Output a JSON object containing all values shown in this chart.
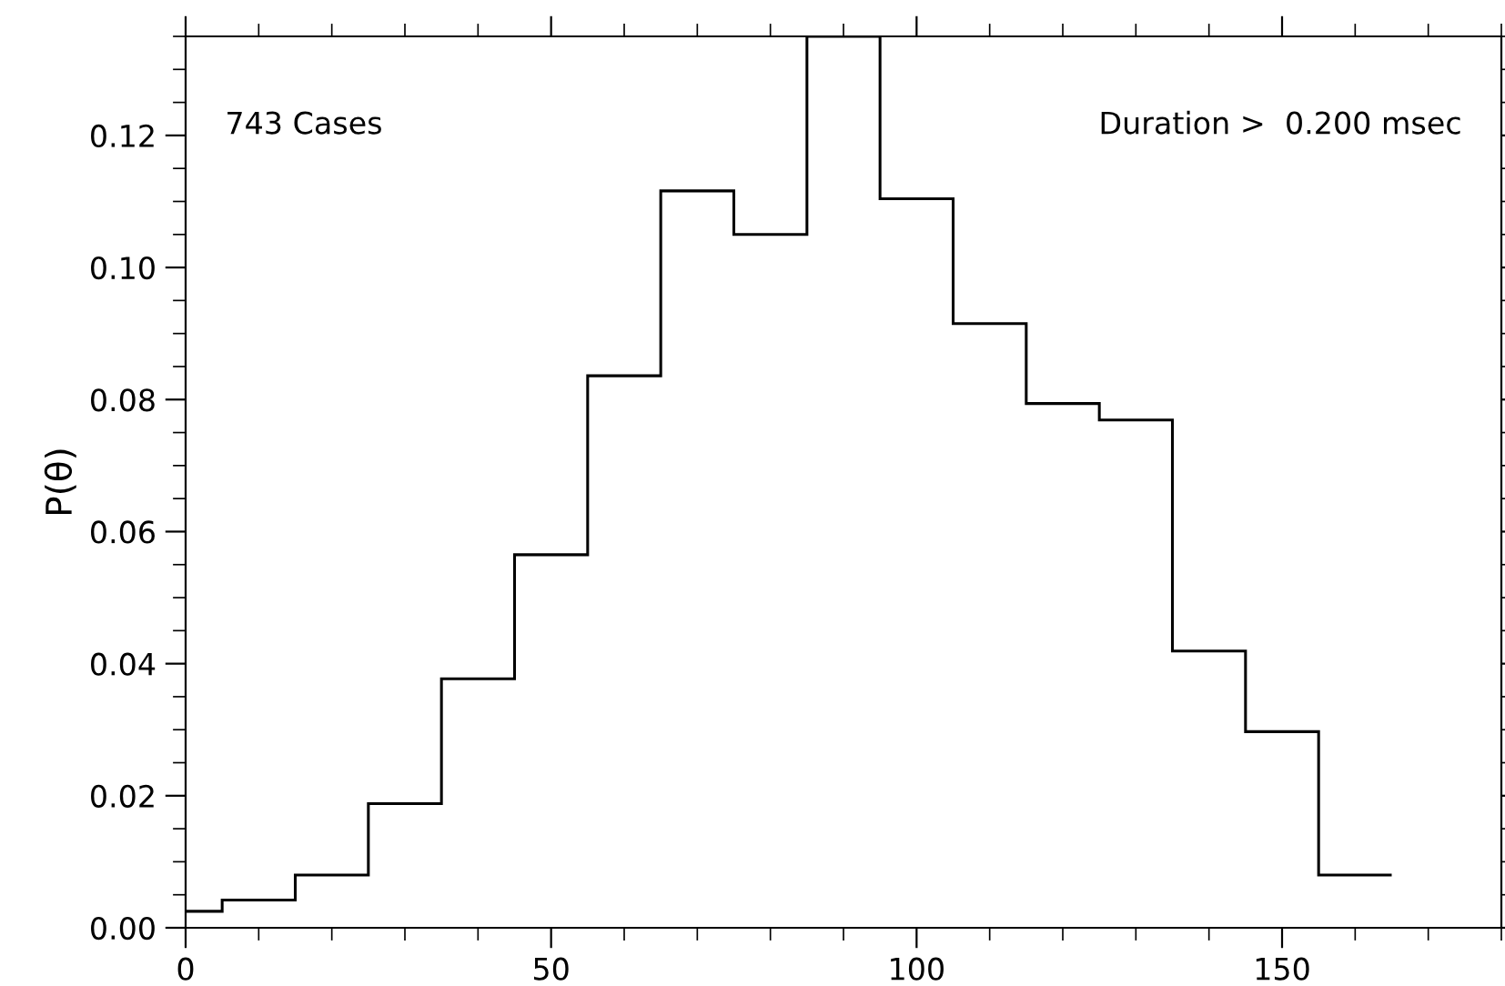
{
  "chart_data": {
    "type": "histogram",
    "ylabel": "P(θ)",
    "bins": [
      0,
      5,
      15,
      25,
      35,
      45,
      55,
      65,
      75,
      85,
      95,
      105,
      115,
      125,
      135,
      145,
      155,
      165
    ],
    "values": [
      0.0025,
      0.0042,
      0.008,
      0.0188,
      0.0377,
      0.0565,
      0.0836,
      0.1116,
      0.105,
      0.135,
      0.1104,
      0.0915,
      0.0794,
      0.0769,
      0.0419,
      0.0297,
      0.008
    ],
    "color": "#000000",
    "xlim": [
      0,
      180
    ],
    "xticks": [
      0,
      50,
      100,
      150
    ],
    "ylim": [
      0,
      0.135
    ],
    "yticks": [
      {
        "value": 0,
        "label": "0.00"
      },
      {
        "value": 0.02,
        "label": "0.02"
      },
      {
        "value": 0.04,
        "label": "0.04"
      },
      {
        "value": 0.06,
        "label": "0.06"
      },
      {
        "value": 0.08,
        "label": "0.08"
      },
      {
        "value": 0.1,
        "label": "0.10"
      },
      {
        "value": 0.12,
        "label": "0.12"
      }
    ],
    "annotations": [
      "743 Cases",
      "Duration >  0.200 msec"
    ],
    "grid": false
  }
}
